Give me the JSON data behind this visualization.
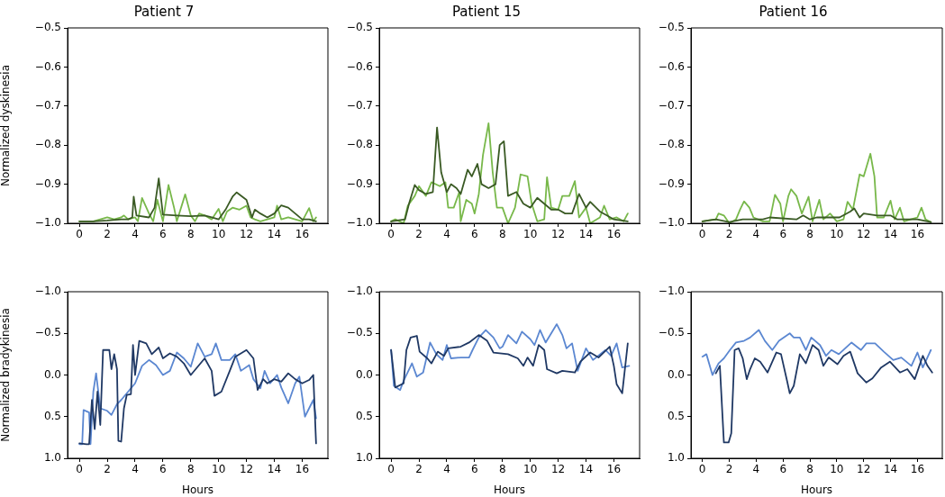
{
  "chart_data": [
    {
      "type": "line",
      "title": "Patient 7",
      "ylabel": "Normalized dyskinesia",
      "xlim": [
        -0.85,
        17.85
      ],
      "xticks": [
        0,
        2,
        4,
        6,
        8,
        10,
        12,
        14,
        16
      ],
      "ylim": [
        -1.0,
        -0.5
      ],
      "yticks": [
        {
          "value": -1.0,
          "label": "−1.0"
        },
        {
          "value": -0.9,
          "label": "−0.9"
        },
        {
          "value": -0.8,
          "label": "−0.8"
        },
        {
          "value": -0.7,
          "label": "−0.7"
        },
        {
          "value": -0.6,
          "label": "−0.6"
        },
        {
          "value": -0.5,
          "label": "−0.5"
        }
      ],
      "series": [
        {
          "color": "#3a5a24",
          "x": [
            0,
            1,
            2,
            3,
            3.5,
            3.8,
            3.9,
            4.1,
            5,
            5.4,
            5.7,
            6.0,
            7,
            8,
            9,
            9.5,
            10,
            10.5,
            11,
            11.3,
            12,
            12.4,
            12.6,
            13,
            13.5,
            14,
            14.5,
            15,
            15.5,
            16,
            16.5,
            17
          ],
          "values": [
            -0.995,
            -0.995,
            -0.993,
            -0.99,
            -0.99,
            -0.985,
            -0.932,
            -0.98,
            -0.985,
            -0.96,
            -0.885,
            -0.978,
            -0.98,
            -0.982,
            -0.98,
            -0.985,
            -0.99,
            -0.965,
            -0.932,
            -0.921,
            -0.94,
            -0.985,
            -0.965,
            -0.975,
            -0.985,
            -0.975,
            -0.954,
            -0.96,
            -0.975,
            -0.99,
            -0.99,
            -0.995
          ]
        },
        {
          "color": "#78b84a",
          "x": [
            0,
            1,
            1.5,
            2,
            2.5,
            3,
            3.2,
            3.5,
            4,
            4.2,
            4.5,
            5,
            5.3,
            5.6,
            6,
            6.4,
            6.8,
            7,
            7.6,
            8,
            8.3,
            8.6,
            9,
            9.5,
            10,
            10.3,
            10.6,
            11,
            11.5,
            12,
            12.3,
            12.6,
            13,
            13.5,
            14,
            14.2,
            14.5,
            15,
            15.5,
            16,
            16.5,
            16.8,
            17
          ],
          "values": [
            -0.995,
            -0.995,
            -0.99,
            -0.985,
            -0.99,
            -0.985,
            -0.98,
            -0.99,
            -0.985,
            -0.995,
            -0.935,
            -0.975,
            -0.995,
            -0.94,
            -0.995,
            -0.902,
            -0.96,
            -0.995,
            -0.926,
            -0.98,
            -0.995,
            -0.975,
            -0.98,
            -0.99,
            -0.963,
            -0.995,
            -0.97,
            -0.96,
            -0.965,
            -0.955,
            -0.985,
            -0.99,
            -0.995,
            -0.99,
            -0.985,
            -0.955,
            -0.99,
            -0.985,
            -0.99,
            -0.995,
            -0.961,
            -0.995,
            -0.985
          ]
        }
      ]
    },
    {
      "type": "line",
      "title": "Patient 15",
      "xlim": [
        -0.85,
        17.85
      ],
      "xticks": [
        0,
        2,
        4,
        6,
        8,
        10,
        12,
        14,
        16
      ],
      "ylim": [
        -1.0,
        -0.5
      ],
      "yticks": [
        {
          "value": -1.0,
          "label": "−1.0"
        },
        {
          "value": -0.9,
          "label": "−0.9"
        },
        {
          "value": -0.8,
          "label": "−0.8"
        },
        {
          "value": -0.7,
          "label": "−0.7"
        },
        {
          "value": -0.6,
          "label": "−0.6"
        },
        {
          "value": -0.5,
          "label": "−0.5"
        }
      ],
      "series": [
        {
          "color": "#3a5a24",
          "x": [
            0,
            1,
            1.3,
            1.7,
            2,
            2.5,
            3,
            3.3,
            3.6,
            4,
            4.3,
            4.7,
            5,
            5.5,
            5.8,
            6.2,
            6.5,
            7,
            7.5,
            7.8,
            8.1,
            8.4,
            9,
            9.5,
            10,
            10.5,
            11,
            11.5,
            12,
            12.5,
            13,
            13.5,
            14,
            14.3,
            15,
            15.5,
            16,
            17
          ],
          "values": [
            -0.995,
            -0.99,
            -0.948,
            -0.902,
            -0.915,
            -0.925,
            -0.92,
            -0.755,
            -0.87,
            -0.92,
            -0.9,
            -0.91,
            -0.925,
            -0.863,
            -0.88,
            -0.848,
            -0.9,
            -0.91,
            -0.9,
            -0.8,
            -0.79,
            -0.93,
            -0.92,
            -0.95,
            -0.96,
            -0.935,
            -0.95,
            -0.965,
            -0.965,
            -0.975,
            -0.975,
            -0.925,
            -0.96,
            -0.945,
            -0.97,
            -0.98,
            -0.99,
            -0.995
          ]
        },
        {
          "color": "#78b84a",
          "x": [
            0,
            0.3,
            0.9,
            1.2,
            1.7,
            2,
            2.5,
            2.9,
            3.5,
            3.9,
            4.1,
            4.5,
            4.9,
            5,
            5.4,
            5.8,
            6,
            6.3,
            6.6,
            7,
            7.3,
            7.6,
            8,
            8.4,
            8.9,
            9.3,
            9.8,
            10.1,
            10.5,
            11,
            11.2,
            11.5,
            12,
            12.3,
            12.8,
            13.2,
            13.5,
            14,
            14.3,
            15,
            15.3,
            15.7,
            16.2,
            16.7,
            17
          ],
          "values": [
            -0.995,
            -0.99,
            -1.0,
            -0.955,
            -0.93,
            -0.905,
            -0.93,
            -0.895,
            -0.905,
            -0.895,
            -0.96,
            -0.96,
            -0.92,
            -0.995,
            -0.94,
            -0.95,
            -0.975,
            -0.925,
            -0.825,
            -0.744,
            -0.87,
            -0.96,
            -0.96,
            -1.0,
            -0.96,
            -0.875,
            -0.88,
            -0.95,
            -0.995,
            -0.99,
            -0.882,
            -0.96,
            -0.965,
            -0.93,
            -0.93,
            -0.892,
            -0.985,
            -0.96,
            -1.0,
            -0.985,
            -0.955,
            -0.99,
            -0.985,
            -0.995,
            -0.975
          ]
        }
      ]
    },
    {
      "type": "line",
      "title": "Patient 16",
      "xlim": [
        -0.85,
        17.85
      ],
      "xticks": [
        0,
        2,
        4,
        6,
        8,
        10,
        12,
        14,
        16
      ],
      "ylim": [
        -1.0,
        -0.5
      ],
      "yticks": [
        {
          "value": -1.0,
          "label": "−1.0"
        },
        {
          "value": -0.9,
          "label": "−0.9"
        },
        {
          "value": -0.8,
          "label": "−0.8"
        },
        {
          "value": -0.7,
          "label": "−0.7"
        },
        {
          "value": -0.6,
          "label": "−0.6"
        },
        {
          "value": -0.5,
          "label": "−0.5"
        }
      ],
      "series": [
        {
          "color": "#3a5a24",
          "x": [
            0,
            1,
            2,
            3,
            4.5,
            5,
            7,
            7.5,
            8,
            8.5,
            10.2,
            11,
            11.3,
            11.7,
            12,
            13,
            14,
            14.5,
            16,
            17
          ],
          "values": [
            -0.995,
            -0.99,
            -0.997,
            -0.99,
            -0.99,
            -0.985,
            -0.99,
            -0.98,
            -0.99,
            -0.985,
            -0.985,
            -0.97,
            -0.962,
            -0.985,
            -0.975,
            -0.98,
            -0.98,
            -0.99,
            -0.99,
            -0.997
          ]
        },
        {
          "color": "#78b84a",
          "x": [
            0,
            0.5,
            1,
            1.2,
            1.6,
            2,
            2.5,
            2.8,
            3.1,
            3.5,
            3.8,
            4.5,
            5,
            5.4,
            5.8,
            6,
            6.4,
            6.6,
            7,
            7.4,
            7.9,
            8.2,
            8.7,
            9,
            9.5,
            10,
            10.5,
            10.8,
            11.2,
            11.7,
            12,
            12.5,
            12.8,
            13,
            13.5,
            14,
            14.3,
            14.7,
            15,
            15.5,
            16,
            16.3,
            16.6,
            17
          ],
          "values": [
            -0.995,
            -0.992,
            -0.99,
            -0.975,
            -0.98,
            -1.0,
            -0.99,
            -0.965,
            -0.944,
            -0.96,
            -0.985,
            -0.995,
            -0.995,
            -0.927,
            -0.95,
            -0.995,
            -0.93,
            -0.913,
            -0.93,
            -0.975,
            -0.932,
            -0.995,
            -0.94,
            -0.99,
            -0.975,
            -0.995,
            -0.99,
            -0.945,
            -0.965,
            -0.875,
            -0.88,
            -0.822,
            -0.88,
            -0.985,
            -0.985,
            -0.942,
            -0.99,
            -0.96,
            -0.995,
            -0.99,
            -0.985,
            -0.96,
            -0.99,
            -0.997
          ]
        }
      ]
    },
    {
      "type": "line",
      "xlabel": "Hours",
      "ylabel": "Normalized bradykinesia",
      "xlim": [
        -0.85,
        17.85
      ],
      "xticks": [
        0,
        2,
        4,
        6,
        8,
        10,
        12,
        14,
        16
      ],
      "ylim": [
        1.0,
        -1.0
      ],
      "yticks": [
        {
          "value": -1.0,
          "label": "−1.0"
        },
        {
          "value": -0.5,
          "label": "−0.5"
        },
        {
          "value": 0,
          "label": "0.0"
        },
        {
          "value": 0.5,
          "label": "0.5"
        },
        {
          "value": 1.0,
          "label": "1.0"
        }
      ],
      "series": [
        {
          "color": "#1f3864",
          "x": [
            0,
            0.5,
            0.7,
            0.9,
            1.1,
            1.3,
            1.5,
            1.7,
            2.15,
            2.3,
            2.5,
            2.7,
            2.8,
            3.0,
            3.2,
            3.4,
            3.7,
            3.85,
            4.0,
            4.3,
            4.8,
            5.2,
            5.7,
            6.0,
            6.5,
            7.0,
            7.5,
            8.0,
            8.5,
            9.0,
            9.5,
            9.7,
            10.2,
            10.8,
            11.2,
            12.0,
            12.5,
            12.8,
            13.2,
            13.5,
            14,
            14.5,
            15,
            15.5,
            16,
            16.5,
            16.8,
            17
          ],
          "values": [
            0.82,
            0.83,
            0.83,
            0.3,
            0.65,
            0.2,
            0.6,
            -0.3,
            -0.3,
            -0.07,
            -0.25,
            -0.07,
            0.79,
            0.8,
            0.4,
            0.24,
            0.23,
            -0.36,
            0.0,
            -0.41,
            -0.38,
            -0.25,
            -0.33,
            -0.2,
            -0.26,
            -0.22,
            -0.14,
            0.0,
            -0.1,
            -0.2,
            -0.05,
            0.25,
            0.2,
            -0.05,
            -0.22,
            -0.3,
            -0.2,
            0.18,
            0.05,
            0.1,
            0.05,
            0.08,
            -0.02,
            0.05,
            0.1,
            0.06,
            0.0,
            0.82
          ]
        },
        {
          "color": "#5b87d1",
          "x": [
            0,
            0.2,
            0.3,
            0.7,
            0.8,
            1.0,
            1.2,
            1.5,
            2.0,
            2.3,
            2.7,
            3.0,
            3.5,
            4.0,
            4.5,
            5.0,
            5.5,
            6.0,
            6.5,
            7.0,
            7.5,
            8.0,
            8.5,
            9.0,
            9.5,
            9.8,
            10.2,
            10.8,
            11.2,
            11.6,
            12.2,
            12.5,
            13,
            13.3,
            13.7,
            14.2,
            14.5,
            15,
            15.5,
            15.8,
            16.2,
            16.8,
            17
          ],
          "values": [
            0.83,
            0.83,
            0.42,
            0.45,
            0.83,
            0.2,
            -0.02,
            0.4,
            0.43,
            0.48,
            0.35,
            0.3,
            0.2,
            0.1,
            -0.11,
            -0.18,
            -0.12,
            0.0,
            -0.05,
            -0.27,
            -0.2,
            -0.1,
            -0.38,
            -0.22,
            -0.25,
            -0.38,
            -0.18,
            -0.18,
            -0.25,
            -0.05,
            -0.12,
            0.05,
            0.16,
            -0.05,
            0.1,
            0.0,
            0.15,
            0.34,
            0.1,
            0.02,
            0.5,
            0.3,
            0.52
          ]
        }
      ]
    },
    {
      "type": "line",
      "xlabel": "Hours",
      "xlim": [
        -0.85,
        17.85
      ],
      "xticks": [
        0,
        2,
        4,
        6,
        8,
        10,
        12,
        14,
        16
      ],
      "ylim": [
        1.0,
        -1.0
      ],
      "yticks": [
        {
          "value": -1.0,
          "label": "−1.0"
        },
        {
          "value": -0.5,
          "label": "−0.5"
        },
        {
          "value": 0,
          "label": "0.0"
        },
        {
          "value": 0.5,
          "label": "0.5"
        },
        {
          "value": 1.0,
          "label": "1.0"
        }
      ],
      "series": [
        {
          "color": "#1f3864",
          "x": [
            0,
            0.3,
            0.9,
            1.1,
            1.4,
            1.85,
            2.05,
            2.6,
            2.9,
            3.35,
            3.8,
            4.1,
            5,
            5.6,
            6.3,
            6.9,
            7.35,
            8.4,
            9.1,
            9.5,
            9.8,
            10.2,
            10.6,
            11,
            11.2,
            11.9,
            12.3,
            13.2,
            13.6,
            14.3,
            14.9,
            15.7,
            16,
            16.2,
            16.6,
            17
          ],
          "values": [
            -0.3,
            0.15,
            0.1,
            -0.3,
            -0.45,
            -0.47,
            -0.28,
            -0.2,
            -0.14,
            -0.28,
            -0.23,
            -0.32,
            -0.34,
            -0.39,
            -0.48,
            -0.41,
            -0.27,
            -0.25,
            -0.2,
            -0.11,
            -0.21,
            -0.11,
            -0.36,
            -0.3,
            -0.07,
            -0.02,
            -0.05,
            -0.03,
            -0.16,
            -0.27,
            -0.21,
            -0.34,
            -0.11,
            0.11,
            0.22,
            -0.38
          ]
        },
        {
          "color": "#5b87d1",
          "x": [
            0,
            0.2,
            0.65,
            0.9,
            1.5,
            1.85,
            2.3,
            2.8,
            3.25,
            3.7,
            4,
            4.3,
            5,
            5.6,
            5.85,
            6.3,
            6.8,
            7.35,
            7.8,
            8,
            8.4,
            9,
            9.4,
            10,
            10.3,
            10.7,
            11.1,
            11.9,
            12.3,
            12.6,
            13,
            13.4,
            14,
            14.5,
            15.4,
            15.8,
            16.2,
            16.6,
            17.1
          ],
          "values": [
            -0.3,
            0.13,
            0.18,
            0.07,
            -0.14,
            0.02,
            -0.03,
            -0.39,
            -0.25,
            -0.18,
            -0.36,
            -0.2,
            -0.21,
            -0.21,
            -0.3,
            -0.45,
            -0.54,
            -0.45,
            -0.32,
            -0.34,
            -0.48,
            -0.38,
            -0.52,
            -0.43,
            -0.36,
            -0.54,
            -0.39,
            -0.61,
            -0.48,
            -0.32,
            -0.38,
            -0.05,
            -0.32,
            -0.18,
            -0.3,
            -0.23,
            -0.38,
            -0.09,
            -0.11
          ]
        }
      ]
    },
    {
      "type": "line",
      "xlabel": "Hours",
      "xlim": [
        -0.85,
        17.85
      ],
      "xticks": [
        0,
        2,
        4,
        6,
        8,
        10,
        12,
        14,
        16
      ],
      "ylim": [
        1.0,
        -1.0
      ],
      "yticks": [
        {
          "value": -1.0,
          "label": "−1.0"
        },
        {
          "value": -0.5,
          "label": "−0.5"
        },
        {
          "value": 0,
          "label": "0.0"
        },
        {
          "value": 0.5,
          "label": "0.5"
        },
        {
          "value": 1.0,
          "label": "1.0"
        }
      ],
      "series": [
        {
          "color": "#1f3864",
          "x": [
            1,
            1.3,
            1.6,
            1.95,
            2.15,
            2.4,
            2.7,
            3.0,
            3.3,
            3.55,
            3.9,
            4.3,
            4.85,
            5.5,
            5.85,
            6.3,
            6.5,
            6.8,
            7.25,
            7.7,
            8.2,
            8.65,
            9.0,
            9.4,
            10.05,
            10.5,
            11.0,
            11.55,
            12.2,
            12.65,
            13.3,
            13.95,
            14.7,
            15.25,
            15.8,
            16.4,
            16.75,
            17.1
          ],
          "values": [
            -0.02,
            -0.11,
            0.81,
            0.81,
            0.7,
            -0.3,
            -0.32,
            -0.2,
            0.05,
            -0.07,
            -0.2,
            -0.16,
            -0.03,
            -0.27,
            -0.25,
            0.07,
            0.22,
            0.13,
            -0.25,
            -0.14,
            -0.36,
            -0.3,
            -0.11,
            -0.21,
            -0.13,
            -0.23,
            -0.28,
            -0.02,
            0.09,
            0.04,
            -0.09,
            -0.16,
            -0.03,
            -0.07,
            0.05,
            -0.23,
            -0.11,
            -0.03
          ]
        },
        {
          "color": "#5b87d1",
          "x": [
            0,
            0.3,
            0.75,
            1.2,
            1.6,
            2.05,
            2.5,
            3.1,
            3.55,
            4.2,
            4.65,
            5.2,
            5.7,
            6.5,
            6.8,
            7.25,
            7.7,
            8.1,
            8.75,
            9.2,
            9.6,
            10.15,
            11.1,
            11.8,
            12.2,
            12.85,
            13.5,
            14.2,
            14.8,
            15.55,
            16,
            16.4,
            17
          ],
          "values": [
            -0.22,
            -0.25,
            0,
            -0.14,
            -0.2,
            -0.3,
            -0.39,
            -0.41,
            -0.45,
            -0.54,
            -0.41,
            -0.3,
            -0.41,
            -0.5,
            -0.45,
            -0.45,
            -0.3,
            -0.45,
            -0.36,
            -0.23,
            -0.3,
            -0.25,
            -0.39,
            -0.3,
            -0.38,
            -0.38,
            -0.28,
            -0.18,
            -0.21,
            -0.11,
            -0.27,
            -0.09,
            -0.3
          ]
        }
      ]
    }
  ]
}
